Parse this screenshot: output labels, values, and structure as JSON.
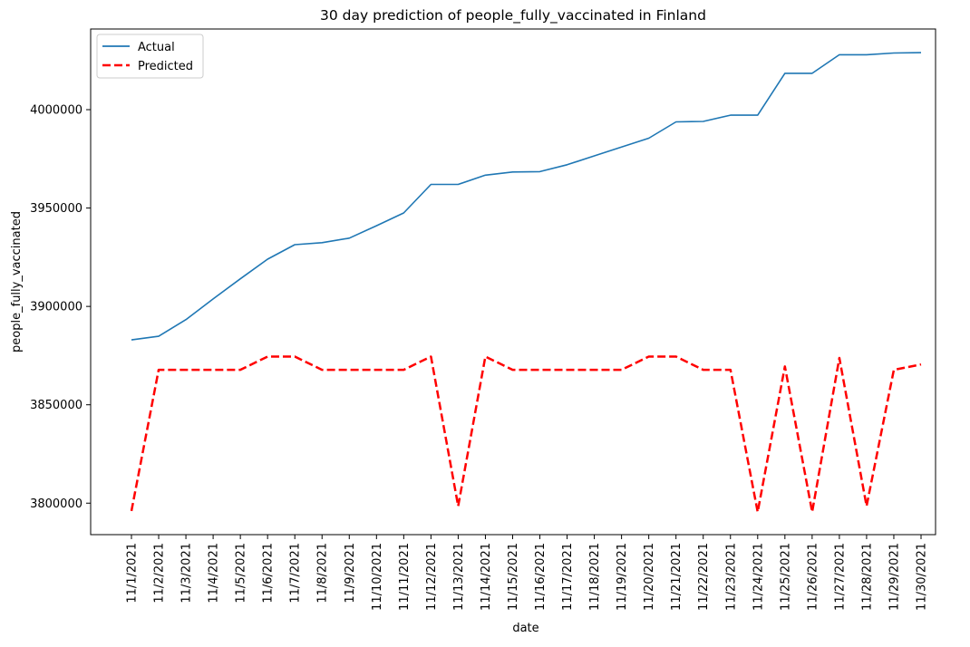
{
  "chart_data": {
    "type": "line",
    "title": "30 day prediction of people_fully_vaccinated in Finland",
    "xlabel": "date",
    "ylabel": "people_fully_vaccinated",
    "categories": [
      "11/1/2021",
      "11/2/2021",
      "11/3/2021",
      "11/4/2021",
      "11/5/2021",
      "11/6/2021",
      "11/7/2021",
      "11/8/2021",
      "11/9/2021",
      "11/10/2021",
      "11/11/2021",
      "11/12/2021",
      "11/13/2021",
      "11/14/2021",
      "11/15/2021",
      "11/16/2021",
      "11/17/2021",
      "11/18/2021",
      "11/19/2021",
      "11/20/2021",
      "11/21/2021",
      "11/22/2021",
      "11/23/2021",
      "11/24/2021",
      "11/25/2021",
      "11/26/2021",
      "11/27/2021",
      "11/28/2021",
      "11/29/2021",
      "11/30/2021"
    ],
    "yticks": [
      3800000,
      3850000,
      3900000,
      3950000,
      4000000
    ],
    "ytick_labels": [
      "3800000",
      "3850000",
      "3900000",
      "3950000",
      "4000000"
    ],
    "ylim": [
      3784000,
      4041000
    ],
    "grid": false,
    "legend_position": "top-left",
    "series": [
      {
        "name": "Actual",
        "color": "#1f77b4",
        "style": "solid",
        "values": [
          3883000,
          3884800,
          3893300,
          3903800,
          3914000,
          3924000,
          3931400,
          3932400,
          3934700,
          3941000,
          3947500,
          3962000,
          3962000,
          3966700,
          3968300,
          3968500,
          3972000,
          3976500,
          3981000,
          3985500,
          3993800,
          3994000,
          3997200,
          3997200,
          4018500,
          4018500,
          4027900,
          4027900,
          4028800,
          4029000
        ]
      },
      {
        "name": "Predicted",
        "color": "#ff0000",
        "style": "dashed",
        "values": [
          3796000,
          3867800,
          3867800,
          3867800,
          3867800,
          3874500,
          3874500,
          3867800,
          3867800,
          3867800,
          3867800,
          3874500,
          3798500,
          3874500,
          3867800,
          3867800,
          3867800,
          3867800,
          3867800,
          3874500,
          3874500,
          3867800,
          3867800,
          3795500,
          3869500,
          3795500,
          3873800,
          3798500,
          3867800,
          3870500
        ]
      }
    ]
  }
}
